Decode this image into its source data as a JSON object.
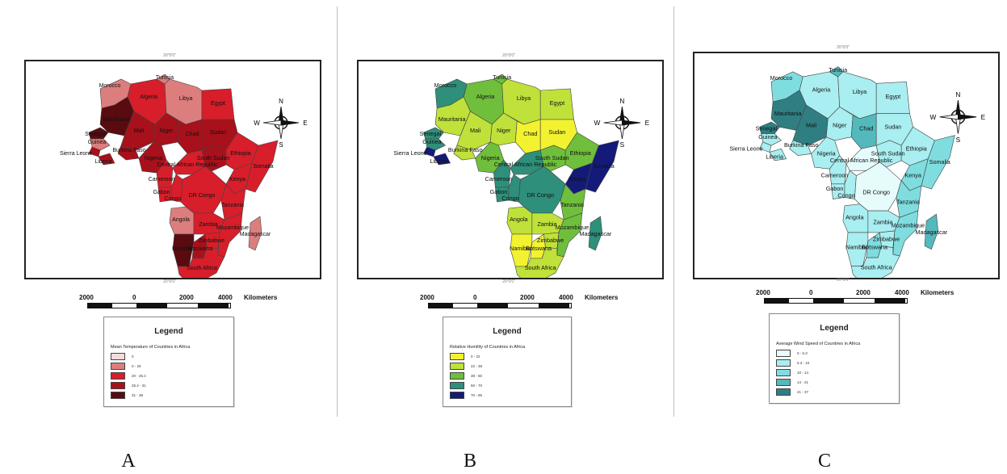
{
  "panels": [
    {
      "id": "A",
      "letter": "A",
      "top_coord": "20°0'0\"",
      "bottom_coord": "20°0'0\"",
      "scale": {
        "left": "2000",
        "zero": "0",
        "mid": "2000",
        "right": "4000",
        "unit": "Kilometers"
      },
      "legend": {
        "title": "Legend",
        "subtitle": "Mean Temperature of Countries in Africa",
        "classes": [
          {
            "label": "0",
            "color": "#f4dcdc"
          },
          {
            "label": "0 - 20",
            "color": "#dd7e7e"
          },
          {
            "label": "20 - 25.4",
            "color": "#d81e2a"
          },
          {
            "label": "25.4 - 31",
            "color": "#a8101b"
          },
          {
            "label": "31 - 38",
            "color": "#5a0b10"
          }
        ]
      },
      "countries": [
        {
          "name": "Morocco",
          "cls": 1
        },
        {
          "name": "Algeria",
          "cls": 2
        },
        {
          "name": "Tunisia",
          "cls": 1
        },
        {
          "name": "Libya",
          "cls": 1
        },
        {
          "name": "Egypt",
          "cls": 2
        },
        {
          "name": "Mauritania",
          "cls": 4
        },
        {
          "name": "Senegal",
          "cls": 4
        },
        {
          "name": "Mali",
          "cls": 3
        },
        {
          "name": "Niger",
          "cls": 3
        },
        {
          "name": "Chad",
          "cls": 3
        },
        {
          "name": "Sudan",
          "cls": 3
        },
        {
          "name": "Guinea",
          "cls": 1
        },
        {
          "name": "Sierra Leone",
          "cls": 3
        },
        {
          "name": "Burkina Faso",
          "cls": 3
        },
        {
          "name": "Liberia",
          "cls": 3
        },
        {
          "name": "Nigeria",
          "cls": 3
        },
        {
          "name": "Cameroon",
          "cls": 2
        },
        {
          "name": "Central African Republic",
          "cls": 2
        },
        {
          "name": "South Sudan",
          "cls": 3
        },
        {
          "name": "Ethiopia",
          "cls": 2
        },
        {
          "name": "Somalia",
          "cls": 2
        },
        {
          "name": "Kenya",
          "cls": 2
        },
        {
          "name": "Gabon",
          "cls": 2
        },
        {
          "name": "Congo",
          "cls": 2
        },
        {
          "name": "DR Congo",
          "cls": 2
        },
        {
          "name": "Tanzania",
          "cls": 2
        },
        {
          "name": "Angola",
          "cls": 1
        },
        {
          "name": "Zambia",
          "cls": 2
        },
        {
          "name": "Mozambique",
          "cls": 2
        },
        {
          "name": "Zimbabwe",
          "cls": 2
        },
        {
          "name": "Namibia",
          "cls": 4
        },
        {
          "name": "Botswana",
          "cls": 3
        },
        {
          "name": "Madagascar",
          "cls": 1
        },
        {
          "name": "South Africa",
          "cls": 2
        }
      ]
    },
    {
      "id": "B",
      "letter": "B",
      "top_coord": "20°0'0\"",
      "bottom_coord": "20°0'0\"",
      "scale": {
        "left": "2000",
        "zero": "0",
        "mid": "2000",
        "right": "4000",
        "unit": "Kilometers"
      },
      "legend": {
        "title": "Legend",
        "subtitle": "Relative Humility of Countries in Africa",
        "classes": [
          {
            "label": "0 - 22",
            "color": "#f2f230"
          },
          {
            "label": "22 - 38",
            "color": "#bfe13a"
          },
          {
            "label": "38 - 50",
            "color": "#6fbf3c"
          },
          {
            "label": "50 - 70",
            "color": "#2e8f7a"
          },
          {
            "label": "70 - 85",
            "color": "#141a78"
          }
        ]
      },
      "countries": [
        {
          "name": "Morocco",
          "cls": 3
        },
        {
          "name": "Algeria",
          "cls": 2
        },
        {
          "name": "Tunisia",
          "cls": 2
        },
        {
          "name": "Libya",
          "cls": 1
        },
        {
          "name": "Egypt",
          "cls": 1
        },
        {
          "name": "Mauritania",
          "cls": 1
        },
        {
          "name": "Senegal",
          "cls": 3
        },
        {
          "name": "Mali",
          "cls": 1
        },
        {
          "name": "Niger",
          "cls": 1
        },
        {
          "name": "Chad",
          "cls": 0
        },
        {
          "name": "Sudan",
          "cls": 0
        },
        {
          "name": "Guinea",
          "cls": 3
        },
        {
          "name": "Sierra Leone",
          "cls": 4
        },
        {
          "name": "Burkina Faso",
          "cls": 1
        },
        {
          "name": "Liberia",
          "cls": 4
        },
        {
          "name": "Nigeria",
          "cls": 2
        },
        {
          "name": "Cameroon",
          "cls": 3
        },
        {
          "name": "Central African Republic",
          "cls": 3
        },
        {
          "name": "South Sudan",
          "cls": 2
        },
        {
          "name": "Ethiopia",
          "cls": 2
        },
        {
          "name": "Somalia",
          "cls": 4
        },
        {
          "name": "Kenya",
          "cls": 4
        },
        {
          "name": "Gabon",
          "cls": 3
        },
        {
          "name": "Congo",
          "cls": 3
        },
        {
          "name": "DR Congo",
          "cls": 3
        },
        {
          "name": "Tanzania",
          "cls": 2
        },
        {
          "name": "Angola",
          "cls": 1
        },
        {
          "name": "Zambia",
          "cls": 1
        },
        {
          "name": "Mozambique",
          "cls": 2
        },
        {
          "name": "Zimbabwe",
          "cls": 1
        },
        {
          "name": "Namibia",
          "cls": 0
        },
        {
          "name": "Botswana",
          "cls": 0
        },
        {
          "name": "Madagascar",
          "cls": 3
        },
        {
          "name": "South Africa",
          "cls": 1
        }
      ]
    },
    {
      "id": "C",
      "letter": "C",
      "top_coord": "20°0'0\"",
      "bottom_coord": "20°0'0\"",
      "scale": {
        "left": "2000",
        "zero": "0",
        "mid": "2000",
        "right": "4000",
        "unit": "Kilometers"
      },
      "legend": {
        "title": "Legend",
        "subtitle": "Average Wind Speed of Countries in Africa",
        "classes": [
          {
            "label": "0 - 5.3",
            "color": "#e6fbfb"
          },
          {
            "label": "5.3 - 10",
            "color": "#a9eef0"
          },
          {
            "label": "10 - 14",
            "color": "#7fdde0"
          },
          {
            "label": "14 - 21",
            "color": "#54b9bd"
          },
          {
            "label": "21 - 37",
            "color": "#2f7f82"
          }
        ]
      },
      "countries": [
        {
          "name": "Morocco",
          "cls": 2
        },
        {
          "name": "Algeria",
          "cls": 1
        },
        {
          "name": "Tunisia",
          "cls": 3
        },
        {
          "name": "Libya",
          "cls": 1
        },
        {
          "name": "Egypt",
          "cls": 1
        },
        {
          "name": "Mauritania",
          "cls": 4
        },
        {
          "name": "Senegal",
          "cls": 4
        },
        {
          "name": "Mali",
          "cls": 4
        },
        {
          "name": "Niger",
          "cls": 1
        },
        {
          "name": "Chad",
          "cls": 3
        },
        {
          "name": "Sudan",
          "cls": 1
        },
        {
          "name": "Guinea",
          "cls": 1
        },
        {
          "name": "Sierra Leone",
          "cls": 1
        },
        {
          "name": "Burkina Faso",
          "cls": 1
        },
        {
          "name": "Liberia",
          "cls": 1
        },
        {
          "name": "Nigeria",
          "cls": 1
        },
        {
          "name": "Cameroon",
          "cls": 1
        },
        {
          "name": "Central African Republic",
          "cls": 0
        },
        {
          "name": "South Sudan",
          "cls": 1
        },
        {
          "name": "Ethiopia",
          "cls": 1
        },
        {
          "name": "Somalia",
          "cls": 2
        },
        {
          "name": "Kenya",
          "cls": 2
        },
        {
          "name": "Gabon",
          "cls": 1
        },
        {
          "name": "Congo",
          "cls": 1
        },
        {
          "name": "DR Congo",
          "cls": 0
        },
        {
          "name": "Tanzania",
          "cls": 2
        },
        {
          "name": "Angola",
          "cls": 1
        },
        {
          "name": "Zambia",
          "cls": 1
        },
        {
          "name": "Mozambique",
          "cls": 2
        },
        {
          "name": "Zimbabwe",
          "cls": 1
        },
        {
          "name": "Namibia",
          "cls": 1
        },
        {
          "name": "Botswana",
          "cls": 2
        },
        {
          "name": "Madagascar",
          "cls": 3
        },
        {
          "name": "South Africa",
          "cls": 1
        }
      ]
    }
  ],
  "north_arrow": {
    "n": "N",
    "s": "S",
    "e": "E",
    "w": "W"
  }
}
